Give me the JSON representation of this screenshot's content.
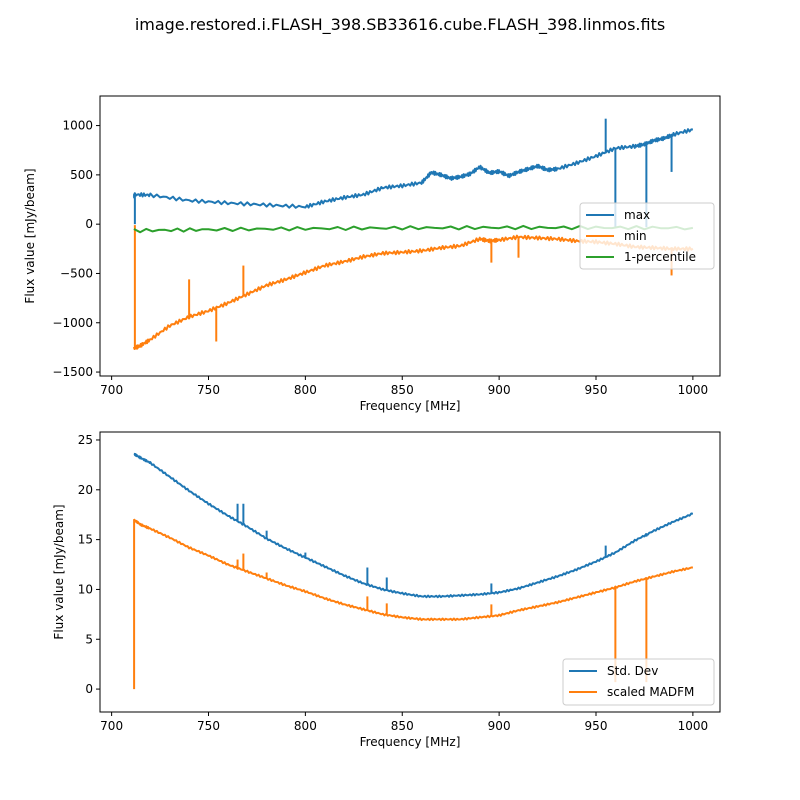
{
  "figure_title": "image.restored.i.FLASH_398.SB33616.cube.FLASH_398.linmos.fits",
  "colors": {
    "blue": "#1f77b4",
    "orange": "#ff7f0e",
    "green": "#2ca02c"
  },
  "chart_data": [
    {
      "type": "line",
      "xlabel": "Frequency [MHz]",
      "ylabel": "Flux value [mJy/beam]",
      "xlim": [
        694,
        1014
      ],
      "ylim": [
        -1540,
        1300
      ],
      "xticks": [
        700,
        750,
        800,
        850,
        900,
        950,
        1000
      ],
      "yticks": [
        -1500,
        -1000,
        -500,
        0,
        500,
        1000
      ],
      "legend": {
        "position": "center-right",
        "entries": [
          "max",
          "min",
          "1-percentile"
        ]
      },
      "series": [
        {
          "name": "max",
          "color": "#1f77b4",
          "points": [
            [
              711.5,
              280
            ],
            [
              712,
              300
            ],
            [
              720,
              295
            ],
            [
              740,
              240
            ],
            [
              760,
              215
            ],
            [
              780,
              195
            ],
            [
              800,
              175
            ],
            [
              810,
              230
            ],
            [
              820,
              270
            ],
            [
              830,
              300
            ],
            [
              840,
              370
            ],
            [
              850,
              390
            ],
            [
              860,
              420
            ],
            [
              865,
              525
            ],
            [
              870,
              500
            ],
            [
              875,
              465
            ],
            [
              880,
              480
            ],
            [
              885,
              510
            ],
            [
              890,
              580
            ],
            [
              895,
              520
            ],
            [
              900,
              535
            ],
            [
              905,
              490
            ],
            [
              910,
              530
            ],
            [
              915,
              560
            ],
            [
              920,
              590
            ],
            [
              925,
              550
            ],
            [
              930,
              560
            ],
            [
              940,
              620
            ],
            [
              950,
              690
            ],
            [
              960,
              770
            ],
            [
              970,
              790
            ],
            [
              975,
              810
            ],
            [
              980,
              850
            ],
            [
              985,
              870
            ],
            [
              990,
              910
            ],
            [
              1000,
              960
            ]
          ],
          "spikes": [
            [
              712,
              0
            ],
            [
              955,
              1070
            ],
            [
              960,
              -30
            ],
            [
              976,
              -30
            ],
            [
              989,
              530
            ]
          ]
        },
        {
          "name": "min",
          "color": "#ff7f0e",
          "points": [
            [
              711.5,
              -1260
            ],
            [
              715,
              -1230
            ],
            [
              720,
              -1170
            ],
            [
              730,
              -1030
            ],
            [
              740,
              -940
            ],
            [
              750,
              -880
            ],
            [
              760,
              -800
            ],
            [
              770,
              -710
            ],
            [
              780,
              -620
            ],
            [
              790,
              -560
            ],
            [
              800,
              -490
            ],
            [
              810,
              -420
            ],
            [
              820,
              -380
            ],
            [
              830,
              -330
            ],
            [
              840,
              -295
            ],
            [
              850,
              -285
            ],
            [
              860,
              -270
            ],
            [
              870,
              -240
            ],
            [
              880,
              -220
            ],
            [
              890,
              -150
            ],
            [
              895,
              -170
            ],
            [
              900,
              -160
            ],
            [
              910,
              -130
            ],
            [
              920,
              -140
            ],
            [
              930,
              -150
            ],
            [
              940,
              -170
            ],
            [
              950,
              -180
            ],
            [
              960,
              -200
            ],
            [
              970,
              -230
            ],
            [
              980,
              -240
            ],
            [
              990,
              -250
            ],
            [
              1000,
              -250
            ]
          ],
          "spikes": [
            [
              712,
              -10
            ],
            [
              740,
              -560
            ],
            [
              754,
              -1190
            ],
            [
              768,
              -420
            ],
            [
              896,
              -390
            ],
            [
              910,
              -340
            ],
            [
              989,
              -520
            ]
          ]
        },
        {
          "name": "1-percentile",
          "color": "#2ca02c",
          "points": [
            [
              711.5,
              -65
            ],
            [
              750,
              -55
            ],
            [
              800,
              -45
            ],
            [
              850,
              -38
            ],
            [
              900,
              -35
            ],
            [
              950,
              -35
            ],
            [
              1000,
              -38
            ]
          ],
          "spikes": []
        }
      ]
    },
    {
      "type": "line",
      "xlabel": "Frequency [MHz]",
      "ylabel": "Flux value [mJy/beam]",
      "xlim": [
        694,
        1014
      ],
      "ylim": [
        -2.3,
        25.8
      ],
      "xticks": [
        700,
        750,
        800,
        850,
        900,
        950,
        1000
      ],
      "yticks": [
        0,
        5,
        10,
        15,
        20,
        25
      ],
      "legend": {
        "position": "lower-right",
        "entries": [
          "Std. Dev",
          "scaled MADFM"
        ]
      },
      "series": [
        {
          "name": "Std. Dev",
          "color": "#1f77b4",
          "points": [
            [
              711.5,
              23.6
            ],
            [
              715,
              23.2
            ],
            [
              720,
              22.7
            ],
            [
              730,
              21.3
            ],
            [
              740,
              19.9
            ],
            [
              750,
              18.6
            ],
            [
              760,
              17.4
            ],
            [
              770,
              16.3
            ],
            [
              780,
              15.1
            ],
            [
              790,
              14.1
            ],
            [
              800,
              13.2
            ],
            [
              810,
              12.3
            ],
            [
              820,
              11.4
            ],
            [
              830,
              10.6
            ],
            [
              840,
              10.0
            ],
            [
              850,
              9.6
            ],
            [
              860,
              9.3
            ],
            [
              870,
              9.3
            ],
            [
              880,
              9.4
            ],
            [
              890,
              9.5
            ],
            [
              900,
              9.7
            ],
            [
              910,
              10.1
            ],
            [
              920,
              10.7
            ],
            [
              930,
              11.3
            ],
            [
              940,
              12.0
            ],
            [
              950,
              12.8
            ],
            [
              960,
              13.7
            ],
            [
              970,
              14.9
            ],
            [
              980,
              15.9
            ],
            [
              990,
              16.8
            ],
            [
              1000,
              17.6
            ]
          ],
          "spikes": [
            [
              765,
              18.6
            ],
            [
              768,
              18.6
            ],
            [
              780,
              15.9
            ],
            [
              800,
              13.7
            ],
            [
              832,
              12.2
            ],
            [
              842,
              11.2
            ],
            [
              896,
              10.6
            ],
            [
              955,
              14.4
            ],
            [
              976,
              15.3
            ]
          ]
        },
        {
          "name": "scaled MADFM",
          "color": "#ff7f0e",
          "points": [
            [
              711.5,
              17.0
            ],
            [
              715,
              16.5
            ],
            [
              720,
              16.1
            ],
            [
              730,
              15.2
            ],
            [
              740,
              14.2
            ],
            [
              750,
              13.4
            ],
            [
              760,
              12.5
            ],
            [
              770,
              11.8
            ],
            [
              780,
              11.1
            ],
            [
              790,
              10.4
            ],
            [
              800,
              9.8
            ],
            [
              810,
              9.1
            ],
            [
              820,
              8.5
            ],
            [
              830,
              8.0
            ],
            [
              840,
              7.5
            ],
            [
              850,
              7.2
            ],
            [
              860,
              7.0
            ],
            [
              870,
              7.0
            ],
            [
              880,
              7.0
            ],
            [
              890,
              7.2
            ],
            [
              900,
              7.4
            ],
            [
              910,
              7.9
            ],
            [
              920,
              8.3
            ],
            [
              930,
              8.7
            ],
            [
              940,
              9.2
            ],
            [
              950,
              9.7
            ],
            [
              960,
              10.2
            ],
            [
              970,
              10.8
            ],
            [
              980,
              11.3
            ],
            [
              990,
              11.8
            ],
            [
              1000,
              12.2
            ]
          ],
          "spikes": [
            [
              711.6,
              0
            ],
            [
              765,
              13.0
            ],
            [
              768,
              13.6
            ],
            [
              780,
              11.7
            ],
            [
              832,
              9.3
            ],
            [
              842,
              8.6
            ],
            [
              896,
              8.5
            ],
            [
              960,
              0.7
            ],
            [
              976,
              0.7
            ]
          ]
        }
      ]
    }
  ]
}
